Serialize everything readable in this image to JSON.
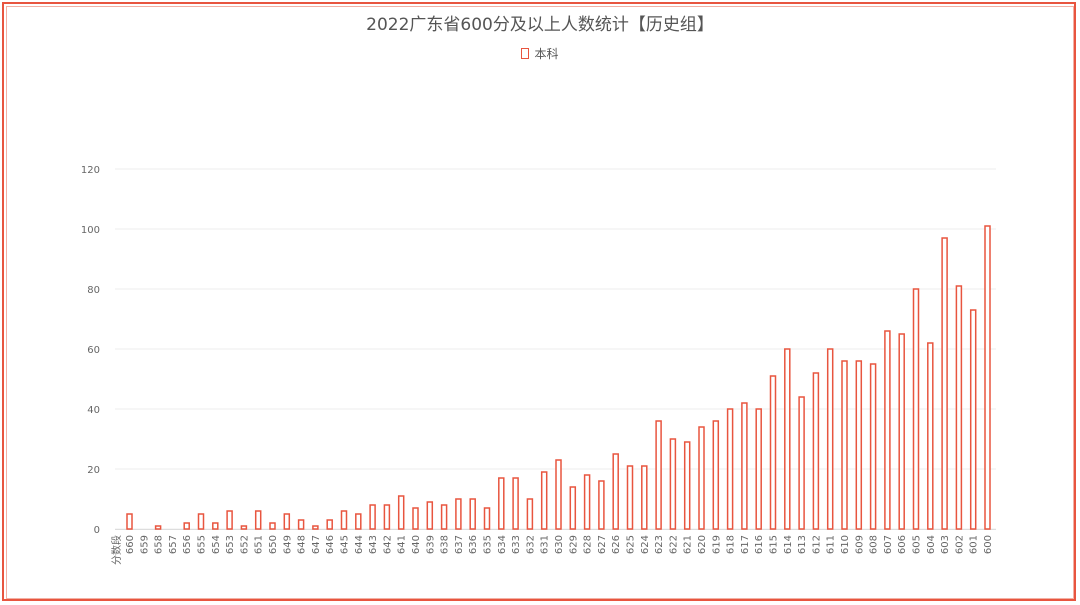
{
  "colors": {
    "frame": "#e8553f",
    "series": "#e8553f",
    "grid": "#eeeeee"
  },
  "chart_data": {
    "type": "bar",
    "title": "2022广东省600分及以上人数统计【历史组】",
    "legend_position": "top",
    "xlabel": "分数段",
    "ylabel": "",
    "ylim": [
      0,
      120
    ],
    "yticks": [
      0,
      20,
      40,
      60,
      80,
      100,
      120
    ],
    "grid": true,
    "categories": [
      "660",
      "659",
      "658",
      "657",
      "656",
      "655",
      "654",
      "653",
      "652",
      "651",
      "650",
      "649",
      "648",
      "647",
      "646",
      "645",
      "644",
      "643",
      "642",
      "641",
      "640",
      "639",
      "638",
      "637",
      "636",
      "635",
      "634",
      "633",
      "632",
      "631",
      "630",
      "629",
      "628",
      "627",
      "626",
      "625",
      "624",
      "623",
      "622",
      "621",
      "620",
      "619",
      "618",
      "617",
      "616",
      "615",
      "614",
      "613",
      "612",
      "611",
      "610",
      "609",
      "608",
      "607",
      "606",
      "605",
      "604",
      "603",
      "602",
      "601",
      "600"
    ],
    "series": [
      {
        "name": "本科",
        "values": [
          5,
          0,
          1,
          0,
          2,
          5,
          2,
          6,
          1,
          6,
          2,
          5,
          3,
          1,
          3,
          6,
          5,
          8,
          8,
          11,
          7,
          9,
          8,
          10,
          10,
          7,
          17,
          17,
          10,
          19,
          23,
          14,
          18,
          16,
          25,
          21,
          21,
          36,
          30,
          29,
          34,
          36,
          40,
          42,
          40,
          51,
          60,
          44,
          52,
          60,
          56,
          56,
          55,
          66,
          65,
          80,
          62,
          97,
          81,
          73,
          101
        ]
      }
    ]
  }
}
